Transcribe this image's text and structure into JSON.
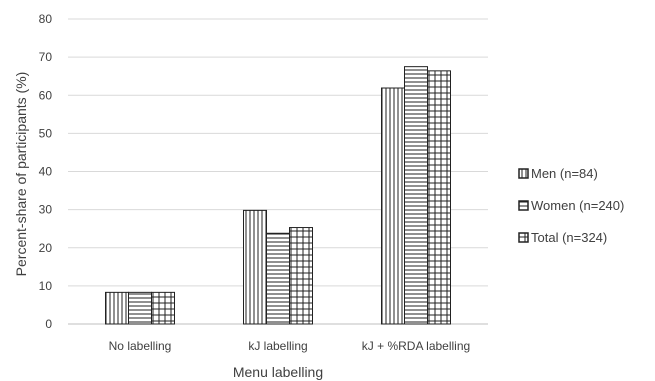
{
  "chart_data": {
    "type": "bar",
    "title": "",
    "xlabel": "Menu labelling",
    "ylabel": "Percent-share of participants (%)",
    "categories": [
      "No labelling",
      "kJ labelling",
      "kJ + %RDA labelling"
    ],
    "ylim": [
      0,
      80
    ],
    "yticks": [
      0,
      10,
      20,
      30,
      40,
      50,
      60,
      70,
      80
    ],
    "grid": true,
    "legend_position": "right",
    "series": [
      {
        "name": "Men  (n=84)",
        "values": [
          8.3,
          29.8,
          61.9
        ],
        "pattern": "vertical-lines"
      },
      {
        "name": "Women (n=240)",
        "values": [
          8.3,
          23.8,
          67.5
        ],
        "pattern": "horizontal-lines"
      },
      {
        "name": "Total (n=324)",
        "values": [
          8.3,
          25.3,
          66.4
        ],
        "pattern": "grid"
      }
    ]
  }
}
